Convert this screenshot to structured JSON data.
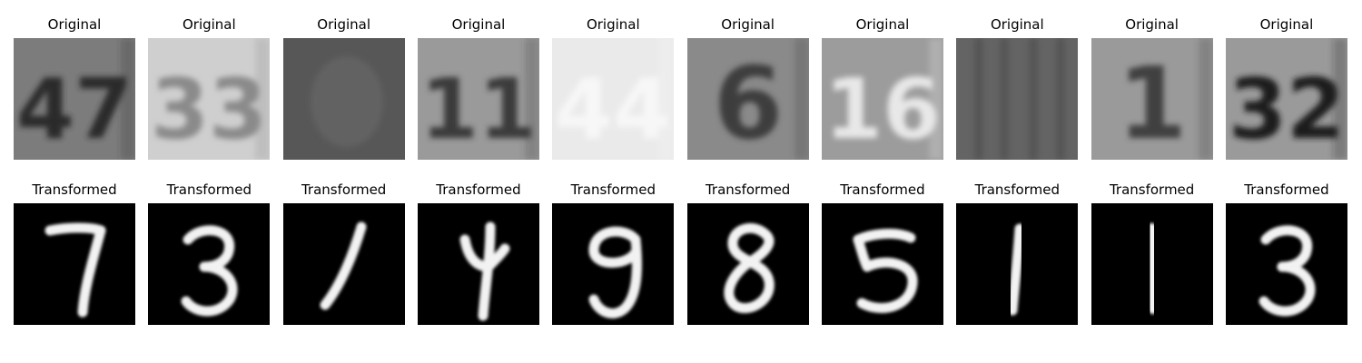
{
  "figure": {
    "row_labels": {
      "original": "Original",
      "transformed": "Transformed"
    },
    "pairs": [
      {
        "original": {
          "depicted": "47",
          "bg": "#7c7c7c",
          "ink": "#2c2c2c",
          "text": "47"
        },
        "transformed": {
          "digit": "7"
        }
      },
      {
        "original": {
          "depicted": "33",
          "bg": "#cfcfcf",
          "ink": "#8a8a8a",
          "text": "33"
        },
        "transformed": {
          "digit": "3"
        }
      },
      {
        "original": {
          "depicted": "blurred",
          "bg": "#575757",
          "ink": "#6a6a6a",
          "text": ""
        },
        "transformed": {
          "digit": "1"
        }
      },
      {
        "original": {
          "depicted": "11",
          "bg": "#9a9a9a",
          "ink": "#3a3a3a",
          "text": "11"
        },
        "transformed": {
          "digit": "4"
        }
      },
      {
        "original": {
          "depicted": "44",
          "bg": "#eaeaea",
          "ink": "#f7f7f7",
          "text": "44"
        },
        "transformed": {
          "digit": "9"
        }
      },
      {
        "original": {
          "depicted": "6",
          "bg": "#8a8a8a",
          "ink": "#3c3c3c",
          "text": "6"
        },
        "transformed": {
          "digit": "8"
        }
      },
      {
        "original": {
          "depicted": "16",
          "bg": "#9c9c9c",
          "ink": "#e8e8e8",
          "text": "16"
        },
        "transformed": {
          "digit": "5"
        }
      },
      {
        "original": {
          "depicted": "blurred-stripes",
          "bg": "#646464",
          "ink": "#505050",
          "text": ""
        },
        "transformed": {
          "digit": "1"
        }
      },
      {
        "original": {
          "depicted": "1",
          "bg": "#9a9a9a",
          "ink": "#3f3f3f",
          "text": "1"
        },
        "transformed": {
          "digit": "1"
        }
      },
      {
        "original": {
          "depicted": "32",
          "bg": "#9a9a9a",
          "ink": "#1c1c1c",
          "text": "32"
        },
        "transformed": {
          "digit": "3"
        }
      }
    ]
  }
}
